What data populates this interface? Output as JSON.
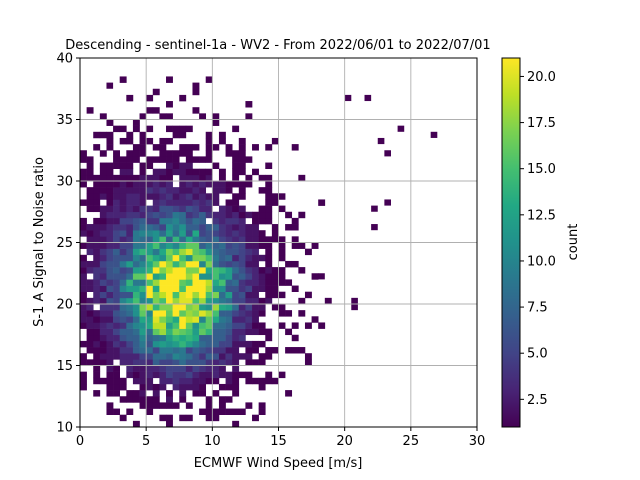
{
  "chart_data": {
    "type": "heatmap",
    "title": "Descending - sentinel-1a - WV2 - From 2022/06/01 to 2022/07/01",
    "xlabel": "ECMWF Wind Speed [m/s]",
    "ylabel": "S-1 A Signal to Noise ratio",
    "xlim": [
      0,
      30
    ],
    "ylim": [
      10,
      40
    ],
    "xticks": [
      0,
      5,
      10,
      15,
      20,
      25,
      30
    ],
    "yticks": [
      10,
      15,
      20,
      25,
      30,
      35,
      40
    ],
    "grid": true,
    "colormap": "viridis",
    "colorbar": {
      "label": "count",
      "range": [
        1,
        21
      ],
      "ticks": [
        2.5,
        5.0,
        7.5,
        10.0,
        12.5,
        15.0,
        17.5,
        20.0
      ],
      "tick_labels": [
        "2.5",
        "5.0",
        "7.5",
        "10.0",
        "12.5",
        "15.0",
        "17.5",
        "20.0"
      ]
    },
    "bins": {
      "x_bin_width": 0.5,
      "y_bin_width": 0.5
    },
    "distribution": {
      "peak": {
        "x": 7.5,
        "y": 21.0,
        "count": 21
      },
      "core_spread": {
        "x_std": 2.6,
        "y_std": 3.3
      },
      "outliers": [
        {
          "x": 2.0,
          "y": 37.5,
          "count": 1
        },
        {
          "x": 20.0,
          "y": 36.5,
          "count": 1
        },
        {
          "x": 21.5,
          "y": 36.5,
          "count": 1
        },
        {
          "x": 26.5,
          "y": 33.5,
          "count": 1
        },
        {
          "x": 24.0,
          "y": 34.0,
          "count": 1
        },
        {
          "x": 22.5,
          "y": 33.0,
          "count": 1
        },
        {
          "x": 23.0,
          "y": 32.0,
          "count": 1
        },
        {
          "x": 22.0,
          "y": 27.5,
          "count": 1
        },
        {
          "x": 22.0,
          "y": 26.0,
          "count": 1
        },
        {
          "x": 20.5,
          "y": 20.0,
          "count": 1
        },
        {
          "x": 20.5,
          "y": 19.5,
          "count": 1
        },
        {
          "x": 23.0,
          "y": 28.0,
          "count": 1
        },
        {
          "x": 18.0,
          "y": 22.0,
          "count": 1
        }
      ]
    }
  }
}
